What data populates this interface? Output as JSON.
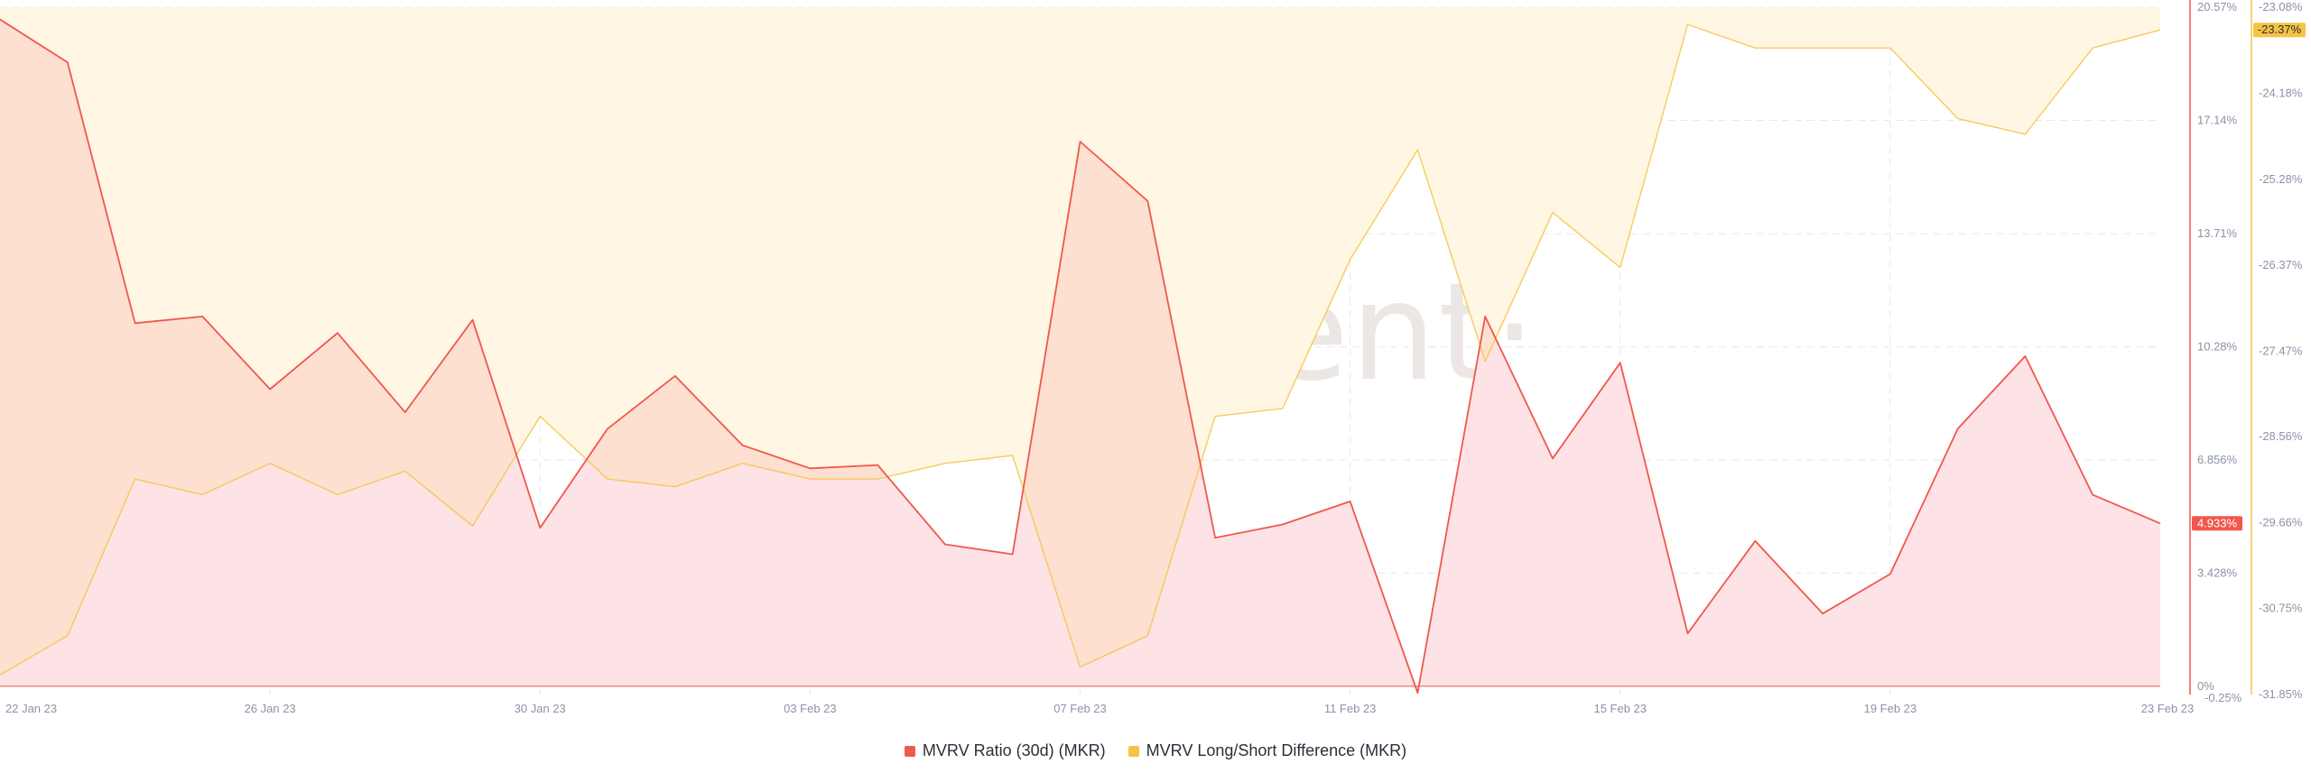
{
  "watermark": "·santiment·",
  "colors": {
    "mvrv": "#f0574d",
    "mvrv_fill": "#fde3e6",
    "ls": "#f6c343",
    "ls_fill": "#fff6e3",
    "overlap": "#fde0cf",
    "badge_ls_bg": "#f6c343",
    "badge_mvrv_bg": "#f0574d"
  },
  "legend": [
    {
      "label": "MVRV Ratio (30d) (MKR)",
      "color": "#f0574d"
    },
    {
      "label": "MVRV Long/Short Difference (MKR)",
      "color": "#f6c343"
    }
  ],
  "badges": {
    "left_axis_current": "4.933%",
    "right_axis_current": "-23.37%"
  },
  "chart_data": {
    "type": "area",
    "x": [
      "22 Jan 23",
      "23 Jan 23",
      "24 Jan 23",
      "25 Jan 23",
      "26 Jan 23",
      "27 Jan 23",
      "28 Jan 23",
      "29 Jan 23",
      "30 Jan 23",
      "31 Jan 23",
      "01 Feb 23",
      "02 Feb 23",
      "03 Feb 23",
      "04 Feb 23",
      "05 Feb 23",
      "06 Feb 23",
      "07 Feb 23",
      "08 Feb 23",
      "09 Feb 23",
      "10 Feb 23",
      "11 Feb 23",
      "12 Feb 23",
      "13 Feb 23",
      "14 Feb 23",
      "15 Feb 23",
      "16 Feb 23",
      "17 Feb 23",
      "18 Feb 23",
      "19 Feb 23",
      "20 Feb 23",
      "21 Feb 23",
      "22 Feb 23",
      "23 Feb 23"
    ],
    "x_tick_labels": [
      "22 Jan 23",
      "26 Jan 23",
      "30 Jan 23",
      "03 Feb 23",
      "07 Feb 23",
      "11 Feb 23",
      "15 Feb 23",
      "19 Feb 23",
      "23 Feb 23"
    ],
    "series": [
      {
        "name": "MVRV Ratio (30d) (MKR)",
        "axis": "left",
        "values": [
          20.2,
          18.9,
          11.0,
          11.2,
          9.0,
          10.7,
          8.3,
          11.1,
          4.8,
          7.8,
          9.4,
          7.3,
          6.6,
          6.7,
          4.3,
          4.0,
          16.5,
          14.7,
          4.5,
          4.9,
          5.6,
          -0.2,
          11.2,
          6.9,
          9.8,
          1.6,
          4.4,
          2.2,
          3.4,
          7.8,
          10.0,
          5.8,
          4.933
        ]
      },
      {
        "name": "MVRV Long/Short Difference (MKR)",
        "axis": "right",
        "values": [
          -31.6,
          -31.1,
          -29.1,
          -29.3,
          -28.9,
          -29.3,
          -29.0,
          -29.7,
          -28.3,
          -29.1,
          -29.2,
          -28.9,
          -29.1,
          -29.1,
          -28.9,
          -28.8,
          -31.5,
          -31.1,
          -28.3,
          -28.2,
          -26.3,
          -24.9,
          -27.6,
          -25.7,
          -26.4,
          -23.3,
          -23.6,
          -23.6,
          -23.6,
          -24.5,
          -24.7,
          -23.6,
          -23.37
        ]
      }
    ],
    "left_axis": {
      "ticks": [
        "20.57%",
        "17.14%",
        "13.71%",
        "10.28%",
        "6.856%",
        "3.428%",
        "0%"
      ],
      "range": [
        -0.25,
        20.57
      ]
    },
    "right_axis": {
      "ticks": [
        "-23.08%",
        "-24.18%",
        "-25.28%",
        "-26.37%",
        "-27.47%",
        "-28.56%",
        "-29.66%",
        "-30.75%",
        "-31.85%"
      ],
      "range": [
        -31.85,
        -23.08
      ]
    },
    "extra_left_tick": "-0.25%",
    "grid": true,
    "legend_position": "bottom"
  }
}
